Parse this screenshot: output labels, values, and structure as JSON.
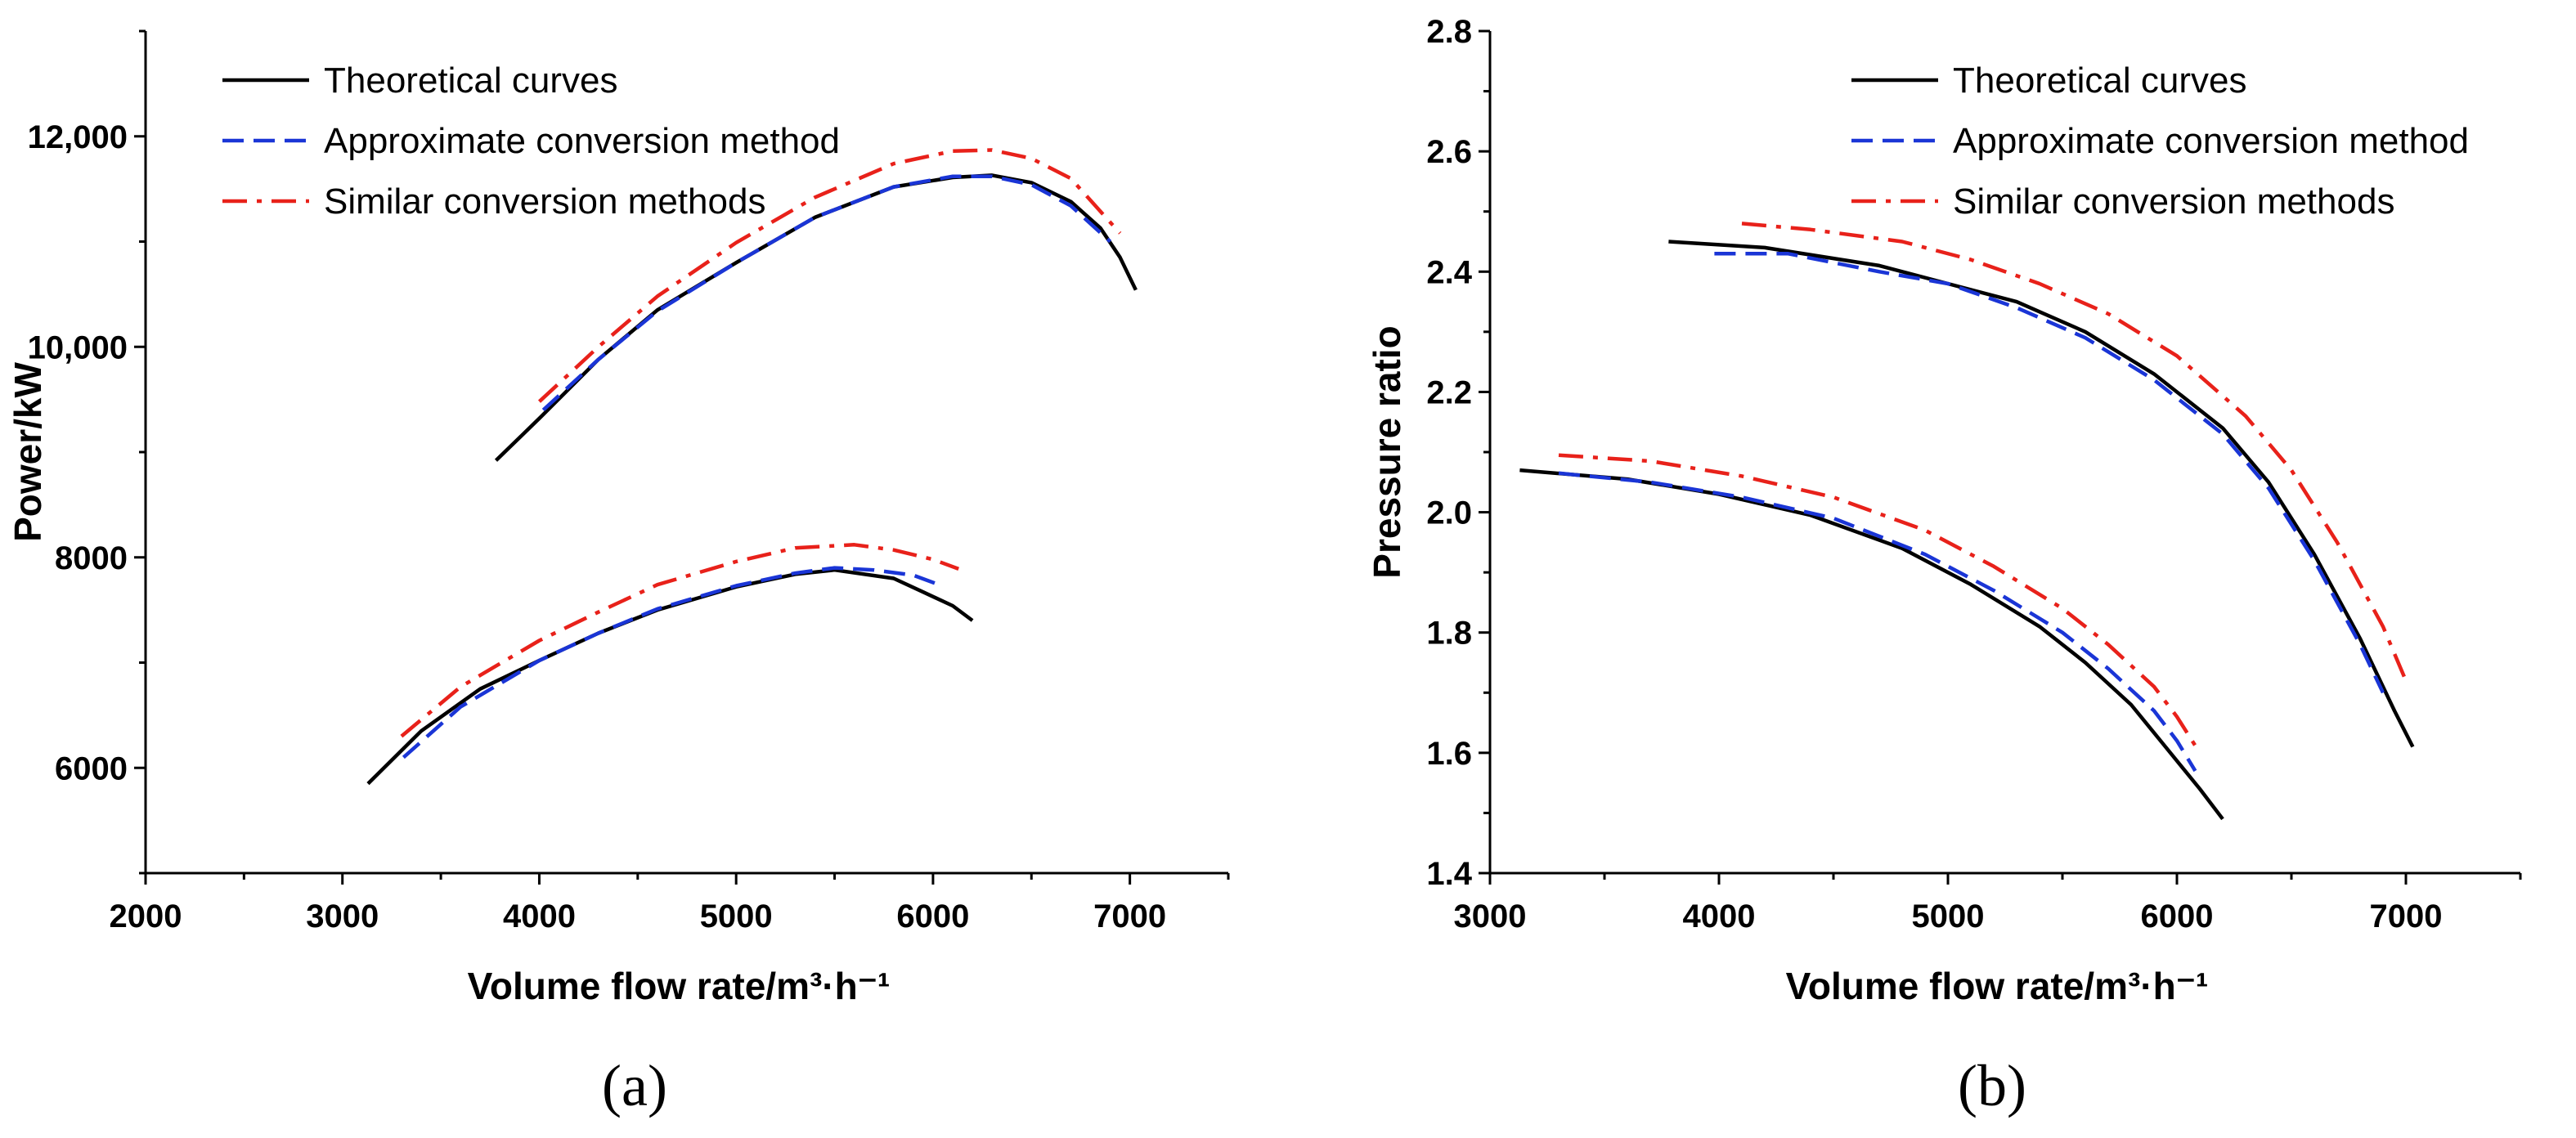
{
  "chart_data": [
    {
      "type": "line",
      "panel_label": "(a)",
      "xlabel": "Volume flow rate/m³·h⁻¹",
      "ylabel": "Power/kW",
      "xlim": [
        2000,
        7500
      ],
      "ylim": [
        5000,
        13000
      ],
      "x_ticks": [
        2000,
        3000,
        4000,
        5000,
        6000,
        7000
      ],
      "x_tick_labels": [
        "2000",
        "3000",
        "4000",
        "5000",
        "6000",
        "7000"
      ],
      "y_ticks": [
        6000,
        8000,
        10000,
        12000
      ],
      "y_tick_labels": [
        "6000",
        "8000",
        "10,000",
        "12,000"
      ],
      "legend_position": "top-left",
      "legend": [
        {
          "label": "Theoretical curves",
          "color": "#000000",
          "dash": "solid"
        },
        {
          "label": "Approximate conversion method",
          "color": "#1a35d6",
          "dash": "dashed"
        },
        {
          "label": "Similar conversion methods",
          "color": "#e8211a",
          "dash": "dashdot"
        }
      ],
      "series": [
        {
          "name": "Theoretical curves (high)",
          "color": "#000000",
          "dash": "solid",
          "x": [
            3780,
            4000,
            4300,
            4600,
            5000,
            5400,
            5800,
            6100,
            6300,
            6500,
            6700,
            6850,
            6950,
            7030
          ],
          "y": [
            8920,
            9320,
            9880,
            10350,
            10800,
            11230,
            11520,
            11610,
            11630,
            11560,
            11380,
            11130,
            10850,
            10540
          ]
        },
        {
          "name": "Approximate conversion method (high)",
          "color": "#1a35d6",
          "dash": "dashed",
          "x": [
            4020,
            4300,
            4600,
            5000,
            5400,
            5800,
            6100,
            6300,
            6500,
            6700,
            6900
          ],
          "y": [
            9400,
            9880,
            10340,
            10800,
            11230,
            11520,
            11620,
            11620,
            11540,
            11340,
            11000
          ]
        },
        {
          "name": "Similar conversion methods (high)",
          "color": "#e8211a",
          "dash": "dashdot",
          "x": [
            4000,
            4300,
            4600,
            5000,
            5400,
            5800,
            6100,
            6300,
            6500,
            6700,
            6950
          ],
          "y": [
            9480,
            10000,
            10480,
            10990,
            11420,
            11740,
            11860,
            11870,
            11790,
            11600,
            11080
          ]
        },
        {
          "name": "Theoretical curves (low)",
          "color": "#000000",
          "dash": "solid",
          "x": [
            3130,
            3400,
            3700,
            4000,
            4300,
            4600,
            5000,
            5300,
            5500,
            5800,
            5950,
            6100,
            6200
          ],
          "y": [
            5850,
            6350,
            6750,
            7020,
            7280,
            7500,
            7720,
            7840,
            7880,
            7800,
            7670,
            7540,
            7400
          ]
        },
        {
          "name": "Approximate conversion method (low)",
          "color": "#1a35d6",
          "dash": "dashed",
          "x": [
            3310,
            3600,
            4000,
            4300,
            4600,
            5000,
            5300,
            5500,
            5700,
            5900,
            6030
          ],
          "y": [
            6100,
            6580,
            7020,
            7280,
            7510,
            7730,
            7850,
            7900,
            7880,
            7830,
            7740
          ]
        },
        {
          "name": "Similar conversion methods (low)",
          "color": "#e8211a",
          "dash": "dashdot",
          "x": [
            3300,
            3600,
            4000,
            4300,
            4600,
            5000,
            5300,
            5600,
            5800,
            6000,
            6130
          ],
          "y": [
            6300,
            6770,
            7210,
            7480,
            7740,
            7960,
            8090,
            8120,
            8070,
            7980,
            7890
          ]
        }
      ]
    },
    {
      "type": "line",
      "panel_label": "(b)",
      "xlabel": "Volume flow rate/m³·h⁻¹",
      "ylabel": "Pressure ratio",
      "xlim": [
        3000,
        7500
      ],
      "ylim": [
        1.4,
        2.8
      ],
      "x_ticks": [
        3000,
        4000,
        5000,
        6000,
        7000
      ],
      "x_tick_labels": [
        "3000",
        "4000",
        "5000",
        "6000",
        "7000"
      ],
      "y_ticks": [
        1.4,
        1.6,
        1.8,
        2.0,
        2.2,
        2.4,
        2.6,
        2.8
      ],
      "y_tick_labels": [
        "1.4",
        "1.6",
        "1.8",
        "2.0",
        "2.2",
        "2.4",
        "2.6",
        "2.8"
      ],
      "legend_position": "top-right",
      "legend": [
        {
          "label": "Theoretical curves",
          "color": "#000000",
          "dash": "solid"
        },
        {
          "label": "Approximate conversion method",
          "color": "#1a35d6",
          "dash": "dashed"
        },
        {
          "label": "Similar conversion methods",
          "color": "#e8211a",
          "dash": "dashdot"
        }
      ],
      "series": [
        {
          "name": "Theoretical curves (high)",
          "color": "#000000",
          "dash": "solid",
          "x": [
            3780,
            4200,
            4700,
            5000,
            5300,
            5600,
            5900,
            6200,
            6400,
            6600,
            6800,
            6950,
            7030
          ],
          "y": [
            2.45,
            2.44,
            2.41,
            2.38,
            2.35,
            2.3,
            2.23,
            2.14,
            2.05,
            1.93,
            1.79,
            1.67,
            1.61
          ]
        },
        {
          "name": "Approximate conversion method (high)",
          "color": "#1a35d6",
          "dash": "dashed",
          "x": [
            3980,
            4300,
            4700,
            5000,
            5300,
            5600,
            5900,
            6200,
            6400,
            6600,
            6800,
            6900
          ],
          "y": [
            2.43,
            2.43,
            2.4,
            2.38,
            2.34,
            2.29,
            2.22,
            2.13,
            2.04,
            1.92,
            1.78,
            1.7
          ]
        },
        {
          "name": "Similar conversion methods (high)",
          "color": "#e8211a",
          "dash": "dashdot",
          "x": [
            4100,
            4400,
            4800,
            5100,
            5400,
            5700,
            6000,
            6300,
            6500,
            6700,
            6900,
            7000
          ],
          "y": [
            2.48,
            2.47,
            2.45,
            2.42,
            2.38,
            2.33,
            2.26,
            2.16,
            2.07,
            1.95,
            1.81,
            1.72
          ]
        },
        {
          "name": "Theoretical curves (low)",
          "color": "#000000",
          "dash": "solid",
          "x": [
            3130,
            3600,
            4000,
            4400,
            4800,
            5100,
            5400,
            5600,
            5800,
            5950,
            6100,
            6200
          ],
          "y": [
            2.07,
            2.055,
            2.03,
            1.995,
            1.94,
            1.88,
            1.81,
            1.75,
            1.68,
            1.61,
            1.54,
            1.49
          ]
        },
        {
          "name": "Approximate conversion method (low)",
          "color": "#1a35d6",
          "dash": "dashed",
          "x": [
            3300,
            3700,
            4100,
            4500,
            4900,
            5200,
            5500,
            5700,
            5900,
            6000,
            6080
          ],
          "y": [
            2.065,
            2.05,
            2.025,
            1.99,
            1.93,
            1.87,
            1.8,
            1.74,
            1.67,
            1.62,
            1.57
          ]
        },
        {
          "name": "Similar conversion methods (low)",
          "color": "#e8211a",
          "dash": "dashdot",
          "x": [
            3300,
            3700,
            4100,
            4500,
            4900,
            5200,
            5500,
            5700,
            5900,
            6000,
            6100
          ],
          "y": [
            2.095,
            2.085,
            2.06,
            2.025,
            1.97,
            1.91,
            1.84,
            1.78,
            1.71,
            1.66,
            1.6
          ]
        }
      ]
    }
  ]
}
